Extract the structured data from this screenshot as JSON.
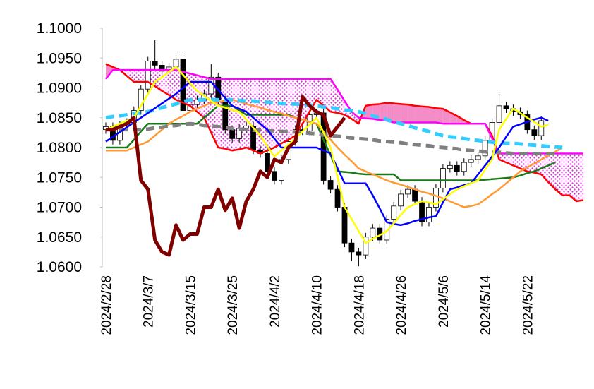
{
  "chart_data": {
    "type": "ichimoku",
    "categories": [
      "2024/2/28",
      null,
      null,
      null,
      null,
      null,
      "2024/3/7",
      null,
      null,
      null,
      null,
      null,
      "2024/3/15",
      null,
      null,
      null,
      null,
      null,
      "2024/3/25",
      null,
      null,
      null,
      null,
      null,
      "2024/4/2",
      null,
      null,
      null,
      null,
      null,
      "2024/4/10",
      null,
      null,
      null,
      null,
      null,
      "2024/4/18",
      null,
      null,
      null,
      null,
      null,
      "2024/4/26",
      null,
      null,
      null,
      null,
      null,
      "2024/5/6",
      null,
      null,
      null,
      null,
      null,
      "2024/5/14",
      null,
      null,
      null,
      null,
      null,
      "2024/5/22",
      null,
      null,
      null,
      null,
      null,
      null,
      null,
      null
    ],
    "ylim": [
      1.06,
      1.1
    ],
    "yticks": [
      {
        "value": 1.06,
        "label": "1.0600"
      },
      {
        "value": 1.065,
        "label": "1.0650"
      },
      {
        "value": 1.07,
        "label": "1.0700"
      },
      {
        "value": 1.075,
        "label": "1.0750"
      },
      {
        "value": 1.08,
        "label": "1.0800"
      },
      {
        "value": 1.085,
        "label": "1.0850"
      },
      {
        "value": 1.09,
        "label": "1.0900"
      },
      {
        "value": 1.095,
        "label": "1.0950"
      },
      {
        "value": 1.1,
        "label": "1.1000"
      }
    ],
    "grid": false,
    "candles": {
      "up_color": "#ffffff",
      "down_color": "#000000",
      "open": [
        1.083,
        1.0835,
        1.0812,
        1.0838,
        1.0842,
        1.0862,
        1.0898,
        1.0945,
        1.0938,
        1.0928,
        1.0935,
        1.0948,
        1.0862,
        1.0872,
        1.088,
        1.089,
        1.0918,
        1.088,
        1.083,
        1.0815,
        1.0832,
        1.0836,
        1.0796,
        1.079,
        1.076,
        1.0745,
        1.078,
        1.081,
        1.083,
        1.0828,
        1.0855,
        1.0858,
        1.0745,
        1.073,
        1.07,
        1.064,
        1.0625,
        1.062,
        1.065,
        1.0665,
        1.0645,
        1.068,
        1.0702,
        1.0722,
        1.073,
        1.071,
        1.0675,
        1.07,
        1.0732,
        1.0765,
        1.077,
        1.076,
        1.0775,
        1.078,
        1.0786,
        1.0812,
        1.0842,
        1.087,
        1.0865,
        1.086,
        1.0855,
        1.083,
        1.082,
        null,
        null,
        null,
        null,
        null,
        null
      ],
      "high": [
        1.0842,
        1.0842,
        1.0845,
        1.0849,
        1.0869,
        1.0905,
        1.0952,
        1.098,
        1.0945,
        1.0942,
        1.0955,
        1.0955,
        1.0879,
        1.0887,
        1.0897,
        1.094,
        1.0925,
        1.0887,
        1.0837,
        1.0839,
        1.0843,
        1.0843,
        1.0803,
        1.0797,
        1.0767,
        1.0787,
        1.0817,
        1.0837,
        1.0837,
        1.0862,
        1.0865,
        1.0865,
        1.0752,
        1.0737,
        1.0707,
        1.0647,
        1.0632,
        1.0657,
        1.0672,
        1.0672,
        1.0687,
        1.0709,
        1.0729,
        1.0737,
        1.0737,
        1.0717,
        1.0707,
        1.0739,
        1.0772,
        1.0777,
        1.0777,
        1.0782,
        1.0787,
        1.0793,
        1.0819,
        1.0849,
        1.089,
        1.0877,
        1.0872,
        1.0867,
        1.0862,
        1.0837,
        1.0852,
        null,
        null,
        null,
        null,
        null,
        null
      ],
      "low": [
        1.0823,
        1.0805,
        1.0805,
        1.0831,
        1.0835,
        1.0855,
        1.0891,
        1.0931,
        1.0921,
        1.0921,
        1.0928,
        1.0855,
        1.0855,
        1.0865,
        1.0873,
        1.0883,
        1.0873,
        1.0823,
        1.0808,
        1.0808,
        1.0825,
        1.0789,
        1.0783,
        1.0753,
        1.0738,
        1.0738,
        1.0773,
        1.0803,
        1.0821,
        1.0821,
        1.0848,
        1.0738,
        1.0723,
        1.0693,
        1.0633,
        1.061,
        1.0601,
        1.0613,
        1.0643,
        1.0638,
        1.0638,
        1.0673,
        1.0695,
        1.0715,
        1.0703,
        1.0668,
        1.0668,
        1.0693,
        1.0725,
        1.0758,
        1.0753,
        1.0753,
        1.0768,
        1.0773,
        1.0779,
        1.0805,
        1.0835,
        1.0858,
        1.0853,
        1.0848,
        1.0823,
        1.0813,
        1.0813,
        null,
        null,
        null,
        null,
        null,
        null
      ],
      "close": [
        1.0835,
        1.0812,
        1.0838,
        1.0842,
        1.0862,
        1.0898,
        1.0945,
        1.0938,
        1.0928,
        1.0935,
        1.0948,
        1.0862,
        1.0872,
        1.088,
        1.089,
        1.0918,
        1.088,
        1.083,
        1.0815,
        1.0832,
        1.0836,
        1.0796,
        1.079,
        1.076,
        1.0745,
        1.078,
        1.081,
        1.083,
        1.0828,
        1.0855,
        1.0858,
        1.0745,
        1.073,
        1.07,
        1.064,
        1.0625,
        1.062,
        1.065,
        1.0665,
        1.0645,
        1.068,
        1.0702,
        1.0722,
        1.073,
        1.071,
        1.0675,
        1.07,
        1.0732,
        1.0765,
        1.077,
        1.076,
        1.0775,
        1.078,
        1.0786,
        1.0812,
        1.0842,
        1.087,
        1.0865,
        1.086,
        1.0855,
        1.083,
        1.082,
        1.0845,
        null,
        null,
        null,
        null,
        null,
        null
      ]
    },
    "cloud": {
      "a": 0,
      "b": 1,
      "a_above_color": "#f48cc8",
      "b_above_color": "#e020e0"
    },
    "series": [
      {
        "color": "#ff0000",
        "line_width": 2.5,
        "values": [
          1.094,
          1.0935,
          1.093,
          1.092,
          1.091,
          1.091,
          1.091,
          1.0903,
          1.0895,
          1.0888,
          1.088,
          1.0875,
          1.087,
          1.086,
          1.085,
          1.0825,
          1.08,
          1.0798,
          1.0795,
          1.0797,
          1.08,
          1.0795,
          1.079,
          1.0795,
          1.08,
          1.0807,
          1.0813,
          1.082,
          1.084,
          1.086,
          1.088,
          1.087,
          1.086,
          1.0858,
          1.0855,
          1.0848,
          1.084,
          1.087,
          1.0872,
          1.0873,
          1.0875,
          1.0874,
          1.0873,
          1.0872,
          1.087,
          1.0869,
          1.0868,
          1.0866,
          1.0865,
          1.0859,
          1.0853,
          1.0846,
          1.084,
          1.084,
          1.084,
          1.082,
          1.078,
          1.0775,
          1.077,
          1.0765,
          1.076,
          1.0758,
          1.0755,
          1.0742,
          1.073,
          1.072,
          1.072,
          1.071,
          1.0712
        ]
      },
      {
        "color": "#ff00ff",
        "line_width": 2.5,
        "values": [
          1.0915,
          1.093,
          1.093,
          1.093,
          1.093,
          1.093,
          1.093,
          1.093,
          1.093,
          1.093,
          1.093,
          1.0927,
          1.0924,
          1.0921,
          1.0918,
          1.0915,
          1.0915,
          1.0915,
          1.0915,
          1.0915,
          1.0915,
          1.0915,
          1.0915,
          1.0915,
          1.0915,
          1.0915,
          1.0915,
          1.0915,
          1.0915,
          1.0915,
          1.0915,
          1.0915,
          1.0915,
          1.0897,
          1.0878,
          1.086,
          1.085,
          1.0849,
          1.0848,
          1.0846,
          1.0845,
          1.0842,
          1.0842,
          1.0842,
          1.0842,
          1.0842,
          1.0842,
          1.0842,
          1.084,
          1.084,
          1.084,
          1.084,
          1.084,
          1.084,
          1.084,
          1.0815,
          1.079,
          1.079,
          1.079,
          1.079,
          1.079,
          1.079,
          1.079,
          1.079,
          1.079,
          1.079,
          1.079,
          1.079,
          1.079
        ]
      },
      {
        "color": "#1a7a1a",
        "line_width": 2.5,
        "values": [
          1.08,
          1.08,
          1.08,
          1.08,
          1.0813,
          1.0827,
          1.084,
          1.084,
          1.084,
          1.084,
          1.084,
          1.084,
          1.084,
          1.084,
          1.085,
          1.086,
          1.087,
          1.087,
          1.087,
          1.0862,
          1.0855,
          1.0855,
          1.0855,
          1.0855,
          1.0855,
          1.0855,
          1.0855,
          1.085,
          1.0847,
          1.0843,
          1.084,
          1.0813,
          1.0787,
          1.076,
          1.0759,
          1.0758,
          1.0756,
          1.0755,
          1.0755,
          1.0755,
          1.0755,
          1.0755,
          1.0745,
          1.0745,
          1.0745,
          1.0745,
          1.0745,
          1.0745,
          1.0745,
          1.0745,
          1.0745,
          1.0745,
          1.0745,
          1.0745,
          1.0746,
          1.0747,
          1.0748,
          1.0749,
          1.075,
          1.0753,
          1.0757,
          1.076,
          1.0765,
          1.077,
          1.0775,
          null,
          null,
          null,
          null
        ]
      },
      {
        "color": "#ff9933",
        "line_width": 2.5,
        "values": [
          1.0795,
          1.0795,
          1.0795,
          1.0795,
          1.08,
          1.0805,
          1.081,
          1.082,
          1.083,
          1.084,
          1.0847,
          1.0853,
          1.086,
          1.0865,
          1.087,
          1.0875,
          1.0877,
          1.0878,
          1.088,
          1.0877,
          1.0873,
          1.087,
          1.0867,
          1.0863,
          1.086,
          1.0857,
          1.0853,
          1.085,
          1.0847,
          1.0843,
          1.084,
          1.0827,
          1.0813,
          1.08,
          1.0788,
          1.0777,
          1.0765,
          1.076,
          1.0755,
          1.075,
          1.0745,
          1.0741,
          1.0738,
          1.0734,
          1.073,
          1.0726,
          1.0723,
          1.0719,
          1.0715,
          1.071,
          1.0705,
          1.07,
          1.0702,
          1.0705,
          1.0713,
          1.0722,
          1.073,
          1.074,
          1.075,
          1.076,
          1.0767,
          1.0773,
          1.078,
          1.0787,
          1.0793,
          1.08,
          null,
          null,
          null
        ]
      },
      {
        "color": "#808080",
        "line_width": 5,
        "dashed": true,
        "values": [
          1.083,
          1.083,
          1.083,
          1.083,
          1.083,
          1.083,
          1.0831,
          1.0833,
          1.0834,
          1.0836,
          1.0837,
          1.0839,
          1.084,
          1.0839,
          1.0837,
          1.0836,
          1.0835,
          1.0834,
          1.0832,
          1.0831,
          1.083,
          1.0829,
          1.0829,
          1.0828,
          1.0828,
          1.0827,
          1.0827,
          1.0826,
          1.0825,
          1.0824,
          1.0823,
          1.0821,
          1.082,
          1.0819,
          1.0818,
          1.0816,
          1.0815,
          1.0814,
          1.0813,
          1.0811,
          1.081,
          1.0809,
          1.0808,
          1.0806,
          1.0805,
          1.0804,
          1.0803,
          1.0801,
          1.08,
          1.0799,
          1.0798,
          1.0796,
          1.0795,
          1.0794,
          1.0793,
          1.0792,
          1.0792,
          1.0791,
          1.079,
          1.079,
          1.079,
          1.079,
          1.079,
          1.079,
          1.079,
          null,
          null,
          null,
          null
        ]
      },
      {
        "color": "#33ccff",
        "line_width": 5,
        "dashed": true,
        "values": [
          1.085,
          1.0852,
          1.0853,
          1.0855,
          1.0857,
          1.0858,
          1.086,
          1.0863,
          1.0867,
          1.087,
          1.0873,
          1.0877,
          1.088,
          1.088,
          1.088,
          1.088,
          1.088,
          1.088,
          1.088,
          1.0879,
          1.0878,
          1.0878,
          1.0877,
          1.0876,
          1.0875,
          1.0874,
          1.0873,
          1.0873,
          1.0872,
          1.0871,
          1.087,
          1.0868,
          1.0867,
          1.0865,
          1.0863,
          1.0862,
          1.086,
          1.0857,
          1.0853,
          1.085,
          1.0847,
          1.0843,
          1.084,
          1.0837,
          1.0833,
          1.083,
          1.0827,
          1.0823,
          1.082,
          1.0818,
          1.0817,
          1.0815,
          1.0813,
          1.0812,
          1.081,
          1.0809,
          1.0808,
          1.0807,
          1.0807,
          1.0806,
          1.0805,
          1.0804,
          1.0803,
          1.0802,
          1.0801,
          1.08,
          null,
          null,
          null
        ]
      },
      {
        "color": "#0000ff",
        "line_width": 2.5,
        "values": [
          1.081,
          1.0818,
          1.0826,
          1.0834,
          1.0842,
          1.085,
          1.0858,
          1.0866,
          1.0874,
          1.0882,
          1.089,
          1.09,
          1.091,
          1.091,
          1.091,
          1.091,
          1.0897,
          1.0883,
          1.087,
          1.0865,
          1.086,
          1.085,
          1.084,
          1.083,
          1.0815,
          1.08,
          1.08,
          1.08,
          1.08,
          1.08,
          1.08,
          1.0795,
          1.079,
          1.0765,
          1.074,
          1.074,
          1.074,
          1.074,
          1.072,
          1.0698,
          1.0675,
          1.0672,
          1.067,
          1.0673,
          1.0677,
          1.068,
          1.0683,
          1.0685,
          1.0708,
          1.073,
          1.0733,
          1.0737,
          1.074,
          1.0755,
          1.077,
          1.0785,
          1.08,
          1.0818,
          1.0835,
          1.0839,
          1.0843,
          1.0847,
          1.085,
          1.0845,
          null,
          null,
          null,
          null,
          null
        ]
      },
      {
        "color": "#ffff00",
        "line_width": 2.5,
        "values": [
          1.083,
          1.0835,
          1.084,
          1.0845,
          1.085,
          1.087,
          1.089,
          1.091,
          1.0918,
          1.0927,
          1.0935,
          1.0922,
          1.0908,
          1.0895,
          1.0887,
          1.0878,
          1.087,
          1.0867,
          1.0863,
          1.086,
          1.0847,
          1.0833,
          1.082,
          1.0802,
          1.0785,
          1.0795,
          1.0805,
          1.0815,
          1.0827,
          1.0838,
          1.085,
          1.0825,
          1.08,
          1.075,
          1.07,
          1.068,
          1.066,
          1.064,
          1.0647,
          1.0653,
          1.066,
          1.0673,
          1.0687,
          1.07,
          1.0705,
          1.071,
          1.0708,
          1.0705,
          1.0713,
          1.0722,
          1.073,
          1.0735,
          1.074,
          1.0745,
          1.0763,
          1.078,
          1.083,
          1.0848,
          1.0865,
          1.0858,
          1.085,
          1.0843,
          1.0835,
          1.0838,
          null,
          null,
          null,
          null,
          null
        ]
      },
      {
        "color": "#800000",
        "line_width": 5,
        "values": [
          1.083,
          1.083,
          1.0835,
          1.084,
          1.085,
          1.0745,
          1.073,
          1.0645,
          1.0625,
          1.062,
          1.067,
          1.0645,
          1.0655,
          1.0655,
          1.07,
          1.07,
          1.073,
          1.0695,
          1.0715,
          1.0665,
          1.071,
          1.073,
          1.076,
          1.075,
          1.078,
          1.0775,
          1.08,
          1.081,
          1.0885,
          1.087,
          1.086,
          1.0855,
          1.082,
          1.0835,
          1.085,
          null,
          null,
          null,
          null,
          null,
          null,
          null,
          null,
          null,
          null,
          null,
          null,
          null,
          null,
          null,
          null,
          null,
          null,
          null,
          null,
          null,
          null,
          null,
          null,
          null,
          null,
          null,
          null,
          null,
          null,
          null,
          null,
          null,
          null
        ]
      }
    ]
  }
}
